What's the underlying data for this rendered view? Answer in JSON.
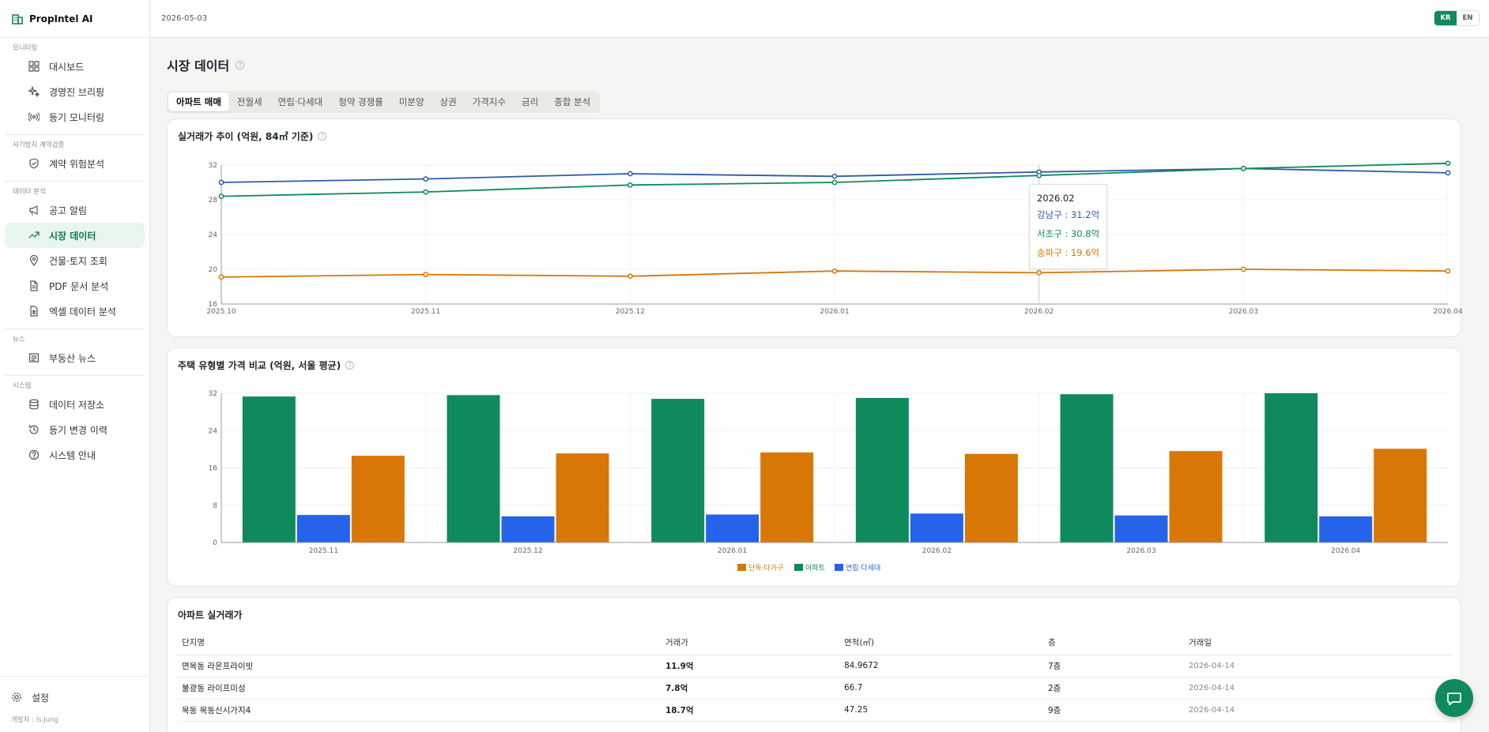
{
  "app": {
    "name": "PropIntel AI"
  },
  "topbar": {
    "date": "2026-05-03",
    "lang_kr": "KR",
    "lang_en": "EN"
  },
  "sidebar": {
    "sections": [
      {
        "label": "모니터링",
        "items": [
          {
            "label": "대시보드",
            "icon": "grid-icon"
          },
          {
            "label": "경영진 브리핑",
            "icon": "sparkles-icon"
          },
          {
            "label": "등기 모니터링",
            "icon": "radio-icon"
          }
        ]
      },
      {
        "label": "사기방지 계약검증",
        "items": [
          {
            "label": "계약 위험분석",
            "icon": "shield-icon"
          }
        ]
      },
      {
        "label": "데이터 분석",
        "items": [
          {
            "label": "공고 알림",
            "icon": "megaphone-icon"
          },
          {
            "label": "시장 데이터",
            "icon": "trending-up-icon",
            "active": true
          },
          {
            "label": "건물·토지 조회",
            "icon": "map-pin-icon"
          },
          {
            "label": "PDF 문서 분석",
            "icon": "file-icon"
          },
          {
            "label": "엑셀 데이터 분석",
            "icon": "sheet-icon"
          }
        ]
      },
      {
        "label": "뉴스",
        "items": [
          {
            "label": "부동산 뉴스",
            "icon": "newspaper-icon"
          }
        ]
      },
      {
        "label": "시스템",
        "items": [
          {
            "label": "데이터 저장소",
            "icon": "database-icon"
          },
          {
            "label": "등기 변경 이력",
            "icon": "history-icon"
          },
          {
            "label": "시스템 안내",
            "icon": "help-circle-icon"
          }
        ]
      }
    ],
    "settings_label": "설정",
    "developer": "개발자 : ls.Jung"
  },
  "page": {
    "title": "시장 데이터",
    "tabs": [
      "아파트 매매",
      "전월세",
      "연립·다세대",
      "청약 경쟁률",
      "미분양",
      "상권",
      "가격지수",
      "금리",
      "종합 분석"
    ],
    "active_tab": 0
  },
  "colors": {
    "accent": "#0f8a5c",
    "gangnam": "#2e5aac",
    "seocho": "#0f8a5c",
    "songpa": "#d97706",
    "house": "#d97706",
    "apt": "#0f8a5c",
    "villa": "#2563eb"
  },
  "chart_data": [
    {
      "type": "line",
      "title": "실거래가 추이 (억원, 84㎡ 기준)",
      "x": [
        "2025.10",
        "2025.11",
        "2025.12",
        "2026.01",
        "2026.02",
        "2026.03",
        "2026.04"
      ],
      "ylim": [
        16,
        32
      ],
      "yticks": [
        16,
        20,
        24,
        28,
        32
      ],
      "grid": true,
      "series": [
        {
          "name": "강남구",
          "values": [
            30.0,
            30.4,
            31.0,
            30.7,
            31.2,
            31.6,
            31.1
          ]
        },
        {
          "name": "서초구",
          "values": [
            28.4,
            28.9,
            29.7,
            30.0,
            30.8,
            31.6,
            32.2
          ]
        },
        {
          "name": "송파구",
          "values": [
            19.1,
            19.4,
            19.2,
            19.8,
            19.6,
            20.0,
            19.8
          ]
        }
      ],
      "tooltip": {
        "date": "2026.02",
        "lines": [
          "강남구 : 31.2억",
          "서초구 : 30.8억",
          "송파구 : 19.6억"
        ]
      }
    },
    {
      "type": "bar",
      "title": "주택 유형별 가격 비교 (억원, 서울 평균)",
      "categories": [
        "2025.11",
        "2025.12",
        "2026.01",
        "2026.02",
        "2026.03",
        "2026.04"
      ],
      "ylim": [
        0,
        32
      ],
      "yticks": [
        0,
        8,
        16,
        24,
        32
      ],
      "grid": true,
      "legend": "bottom",
      "series": [
        {
          "name": "아파트",
          "values": [
            31.3,
            31.6,
            30.8,
            31.0,
            31.8,
            32.0
          ]
        },
        {
          "name": "연립·다세대",
          "values": [
            5.9,
            5.6,
            6.0,
            6.2,
            5.8,
            5.6
          ]
        },
        {
          "name": "단독·다가구",
          "values": [
            18.6,
            19.1,
            19.3,
            19.0,
            19.6,
            20.1
          ]
        }
      ],
      "legend_order": [
        "단독·다가구",
        "아파트",
        "연립·다세대"
      ]
    }
  ],
  "table": {
    "title": "아파트 실거래가",
    "columns": [
      "단지명",
      "거래가",
      "면적(㎡)",
      "층",
      "거래일"
    ],
    "rows": [
      [
        "면목동 라온프라이빗",
        "11.9억",
        "84.9672",
        "7층",
        "2026-04-14"
      ],
      [
        "불광동 라이프미성",
        "7.8억",
        "66.7",
        "2층",
        "2026-04-14"
      ],
      [
        "목동 목동신시가지4",
        "18.7억",
        "47.25",
        "9층",
        "2026-04-14"
      ]
    ]
  }
}
